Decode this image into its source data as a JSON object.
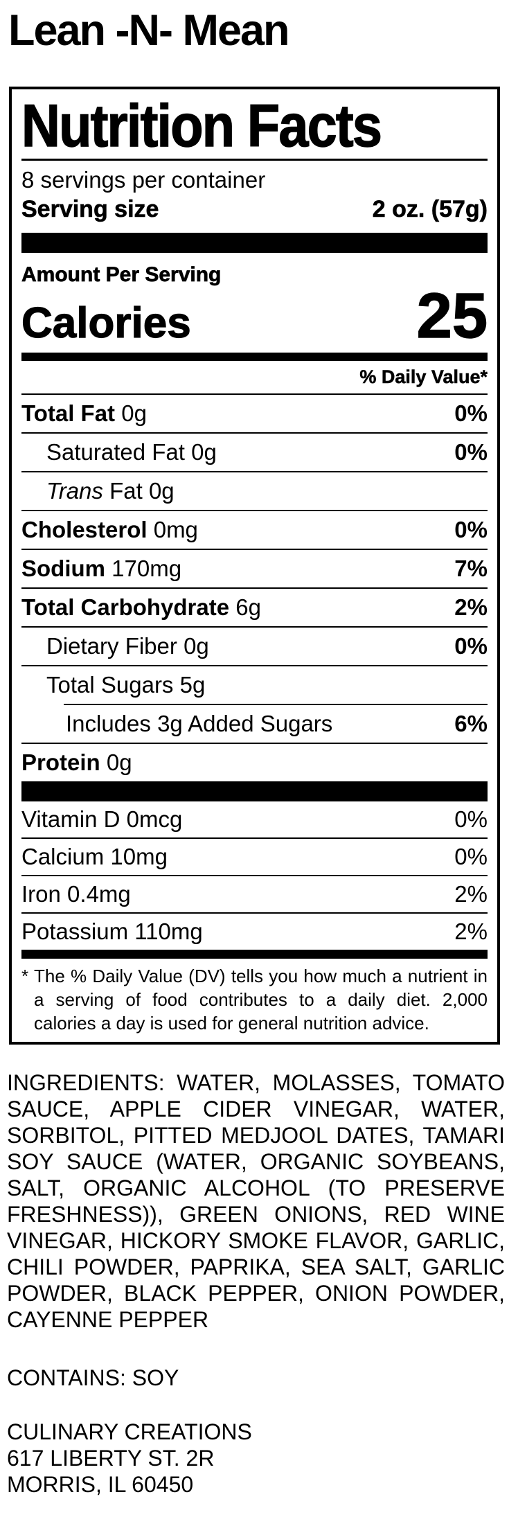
{
  "colors": {
    "text": "#000000",
    "background": "#ffffff"
  },
  "product_title": "Lean -N- Mean",
  "label": {
    "title": "Nutrition Facts",
    "servings_per_container": "8 servings per container",
    "serving_size": {
      "label": "Serving size",
      "value": "2 oz. (57g)"
    },
    "amount_per_serving": "Amount Per Serving",
    "calories": {
      "label": "Calories",
      "value": "25"
    },
    "daily_value_header": "% Daily Value*",
    "rows": [
      {
        "label": "Total Fat",
        "value": "0g",
        "dv": "0%"
      },
      {
        "label": "Saturated Fat",
        "value": "0g",
        "dv": "0%"
      },
      {
        "label_italic": "Trans",
        "label": "Fat",
        "value": "0g",
        "dv": ""
      },
      {
        "label": "Cholesterol",
        "value": "0mg",
        "dv": "0%"
      },
      {
        "label": "Sodium",
        "value": "170mg",
        "dv": "7%"
      },
      {
        "label": "Total Carbohydrate",
        "value": "6g",
        "dv": "2%"
      },
      {
        "label": "Dietary Fiber",
        "value": "0g",
        "dv": "0%"
      },
      {
        "label": "Total Sugars",
        "value": "5g",
        "dv": ""
      },
      {
        "label": "Includes 3g Added Sugars",
        "value": "",
        "dv": "6%"
      },
      {
        "label": "Protein",
        "value": "0g",
        "dv": ""
      },
      {
        "label": "Vitamin D",
        "value": "0mcg",
        "dv": "0%"
      },
      {
        "label": "Calcium",
        "value": "10mg",
        "dv": "0%"
      },
      {
        "label": "Iron",
        "value": "0.4mg",
        "dv": "2%"
      },
      {
        "label": "Potassium",
        "value": "110mg",
        "dv": "2%"
      }
    ],
    "footnote_marker": "*",
    "footnote": "The % Daily Value (DV) tells you how much a nutrient in a serving of food contributes to a daily diet. 2,000 calories a day is used for general nutrition advice."
  },
  "ingredients": "INGREDIENTS: WATER, MOLASSES, TOMATO SAUCE, APPLE CIDER VINEGAR, WATER, SORBITOL, PITTED MEDJOOL DATES, TAMARI SOY SAUCE (WATER, ORGANIC SOYBEANS, SALT, ORGANIC ALCOHOL (TO PRESERVE FRESHNESS)), GREEN ONIONS, RED WINE VINEGAR, HICKORY SMOKE FLAVOR, GARLIC, CHILI POWDER, PAPRIKA, SEA SALT, GARLIC POWDER, BLACK PEPPER, ONION POWDER, CAYENNE PEPPER",
  "contains": "CONTAINS: SOY",
  "manufacturer": {
    "name": "CULINARY CREATIONS",
    "address_line1": "617 LIBERTY ST. 2R",
    "address_line2": "MORRIS, IL 60450"
  }
}
